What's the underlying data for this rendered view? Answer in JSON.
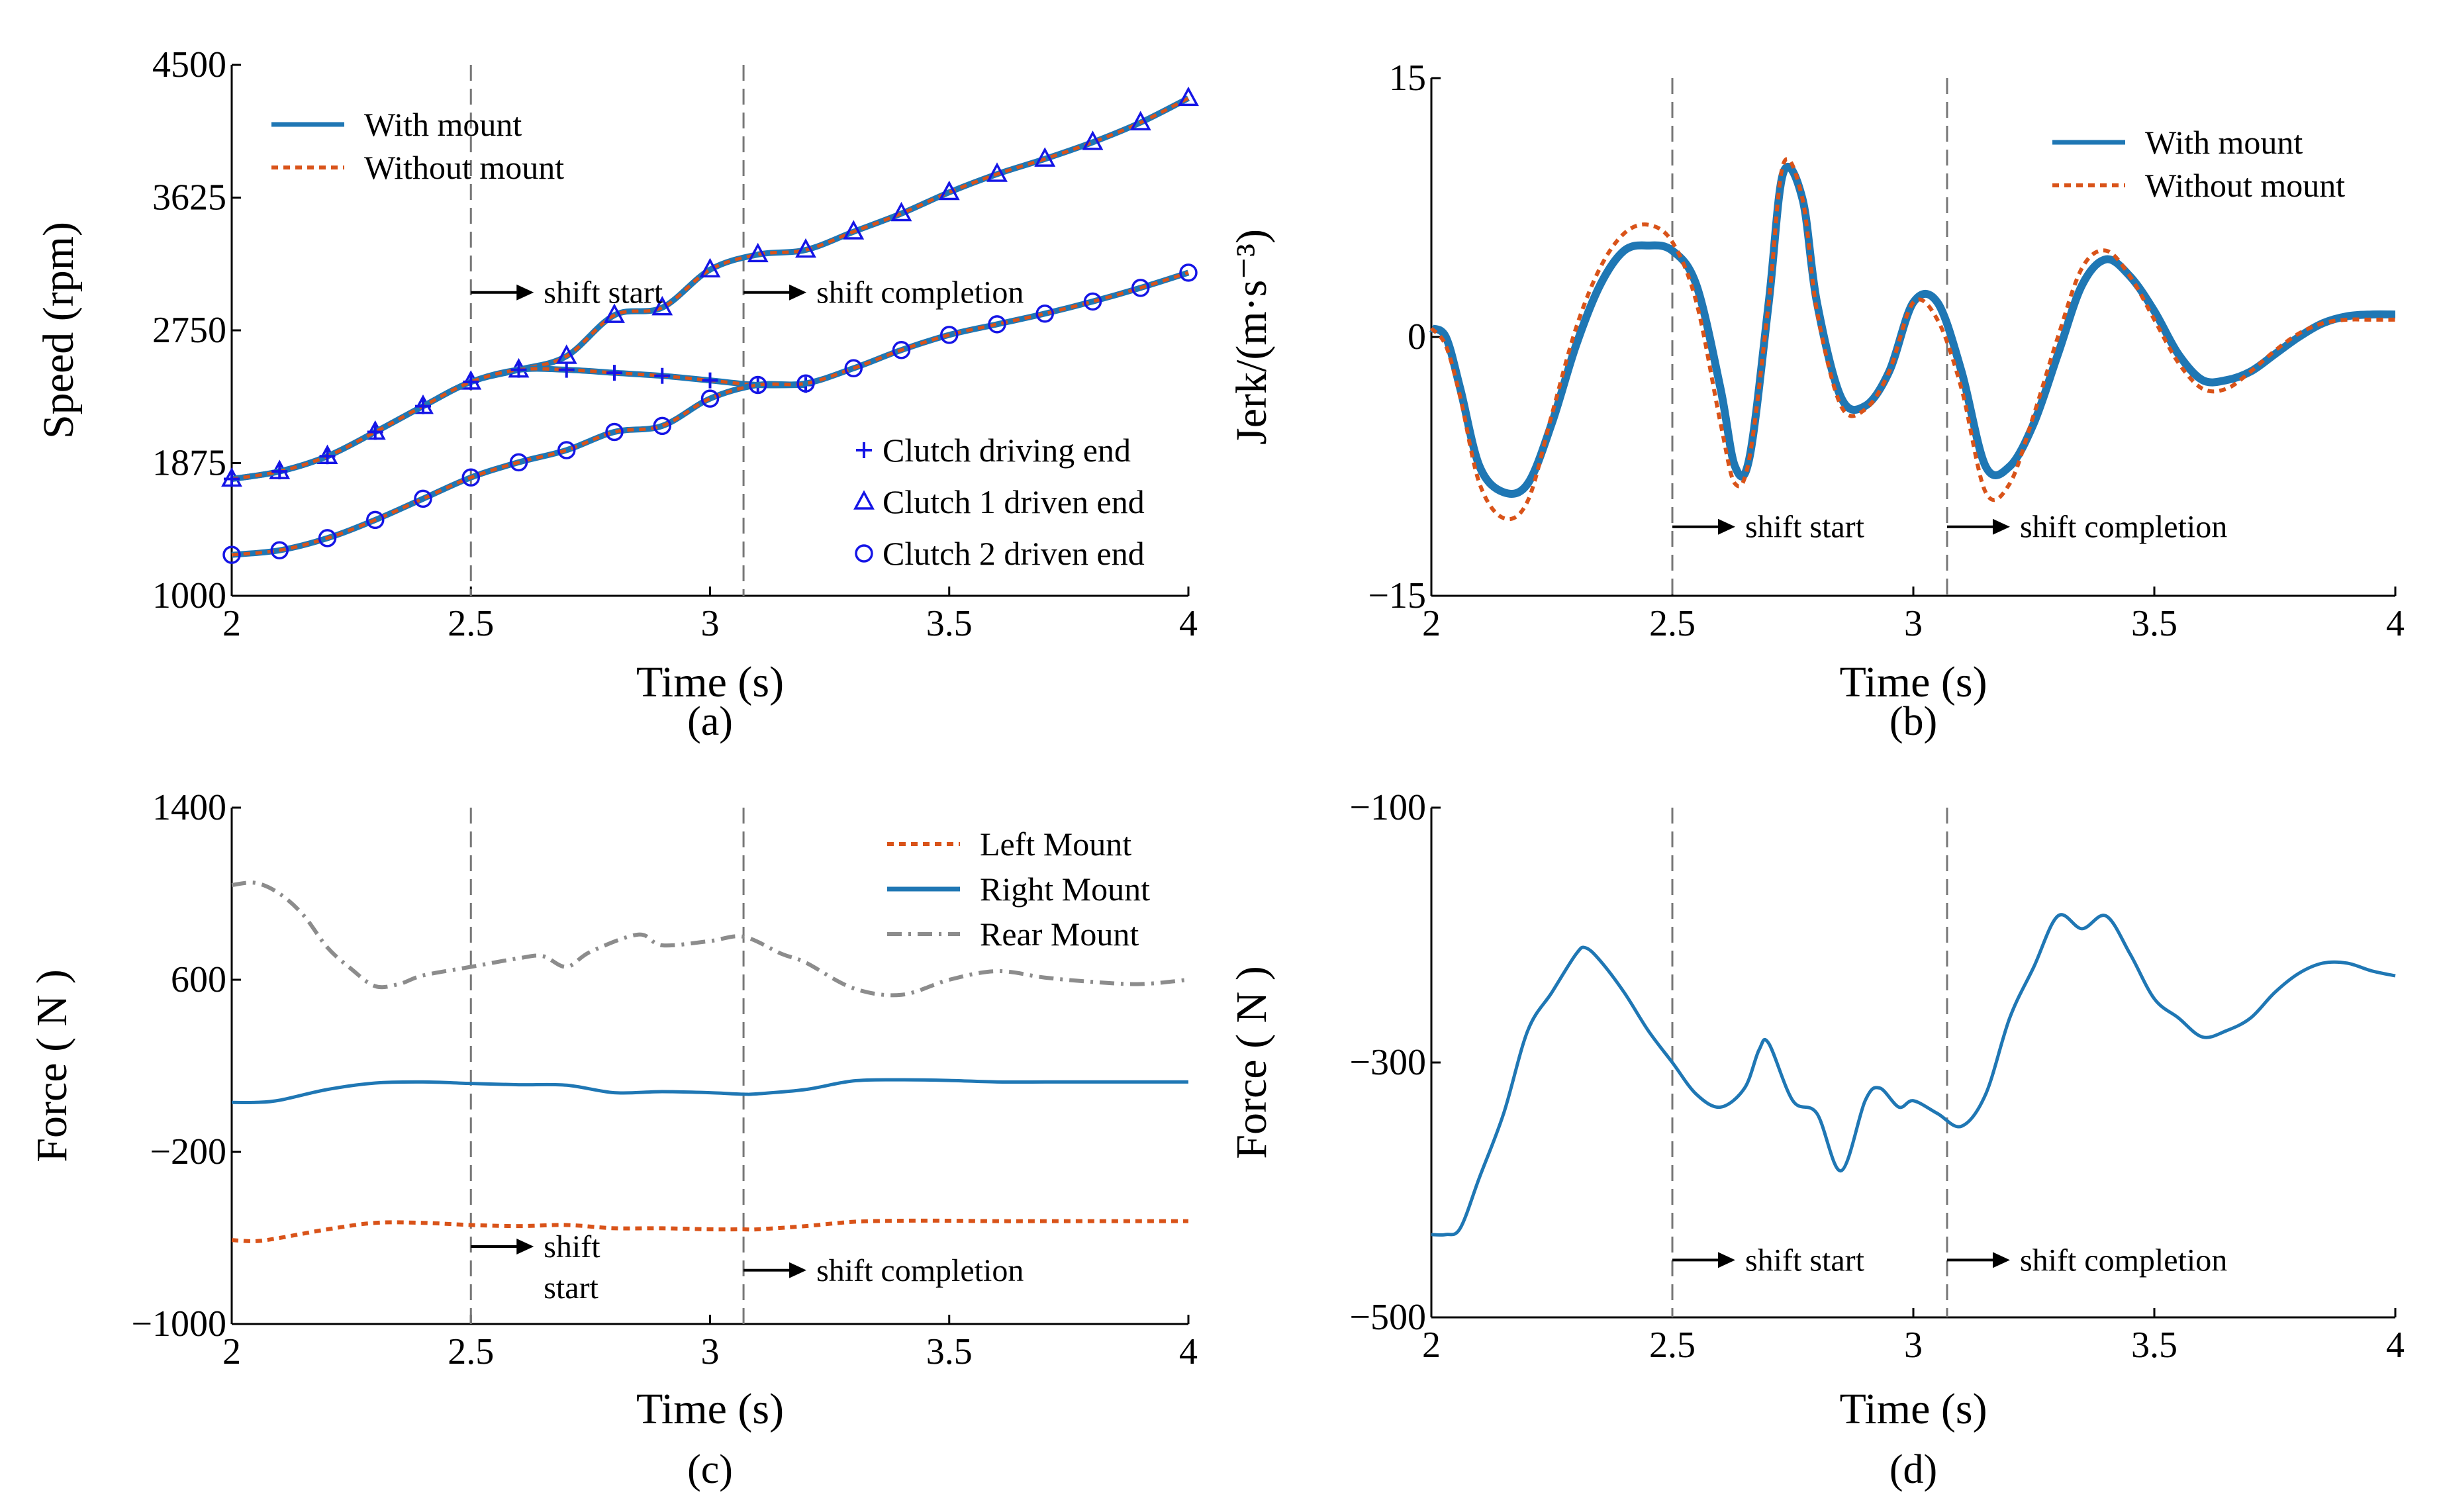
{
  "chart_data": [
    {
      "id": "a",
      "type": "line",
      "panel_label": "(a)",
      "xlabel": "Time (s)",
      "ylabel": "Speed (rpm)",
      "xlim": [
        2,
        4
      ],
      "ylim": [
        1000,
        4500
      ],
      "xticks": [
        2,
        2.5,
        3,
        3.5,
        4
      ],
      "xtick_labels": [
        "2",
        "2.5",
        "3",
        "3.5",
        "4"
      ],
      "yticks": [
        1000,
        1875,
        2750,
        3625,
        4500
      ],
      "ytick_labels": [
        "1000",
        "1875",
        "2750",
        "3625",
        "4500"
      ],
      "vlines": [
        2.5,
        3.07
      ],
      "annotations": [
        {
          "text": "shift start",
          "x": 2.5,
          "y": 3000
        },
        {
          "text": "shift completion",
          "x": 3.07,
          "y": 3000
        }
      ],
      "legend_lines": [
        {
          "name": "With mount",
          "color": "#1f77b4",
          "style": "solid"
        },
        {
          "name": "Without mount",
          "color": "#d95319",
          "style": "dotted"
        }
      ],
      "legend_markers": [
        {
          "name": "Clutch driving end",
          "marker": "plus",
          "color": "#1515e6"
        },
        {
          "name": "Clutch 1 driven end",
          "marker": "triangle",
          "color": "#1515e6"
        },
        {
          "name": "Clutch 2 driven end",
          "marker": "circle",
          "color": "#1515e6"
        }
      ],
      "series": [
        {
          "name": "Clutch 1 driven end",
          "marker": "triangle",
          "x": [
            2.0,
            2.1,
            2.2,
            2.3,
            2.4,
            2.5,
            2.6,
            2.7,
            2.8,
            2.9,
            3.0,
            3.1,
            3.2,
            3.3,
            3.4,
            3.5,
            3.6,
            3.7,
            3.8,
            3.9,
            4.0
          ],
          "values": [
            1770,
            1820,
            1920,
            2080,
            2250,
            2410,
            2490,
            2580,
            2850,
            2900,
            3150,
            3250,
            3280,
            3400,
            3520,
            3660,
            3780,
            3880,
            3990,
            4120,
            4280
          ]
        },
        {
          "name": "Clutch driving end",
          "marker": "plus",
          "x": [
            2.0,
            2.1,
            2.2,
            2.3,
            2.4,
            2.5,
            2.6,
            2.7,
            2.8,
            2.9,
            3.0,
            3.1,
            3.2
          ],
          "values": [
            1770,
            1820,
            1920,
            2080,
            2250,
            2410,
            2490,
            2490,
            2470,
            2450,
            2420,
            2390,
            2390
          ]
        },
        {
          "name": "Clutch 2 driven end",
          "marker": "circle",
          "x": [
            2.0,
            2.1,
            2.2,
            2.3,
            2.4,
            2.5,
            2.6,
            2.7,
            2.8,
            2.9,
            3.0,
            3.1,
            3.2,
            3.3,
            3.4,
            3.5,
            3.6,
            3.7,
            3.8,
            3.9,
            4.0
          ],
          "values": [
            1270,
            1300,
            1380,
            1500,
            1640,
            1780,
            1880,
            1960,
            2080,
            2120,
            2300,
            2390,
            2400,
            2500,
            2620,
            2720,
            2790,
            2860,
            2940,
            3030,
            3130
          ]
        }
      ]
    },
    {
      "id": "b",
      "type": "line",
      "panel_label": "(b)",
      "xlabel": "Time (s)",
      "ylabel": "Jerk/(m·s⁻³)",
      "xlim": [
        2,
        4
      ],
      "ylim": [
        -15,
        15
      ],
      "xticks": [
        2,
        2.5,
        3,
        3.5,
        4
      ],
      "xtick_labels": [
        "2",
        "2.5",
        "3",
        "3.5",
        "4"
      ],
      "yticks": [
        -15,
        0,
        15
      ],
      "ytick_labels": [
        "−15",
        "0",
        "15"
      ],
      "vlines": [
        2.5,
        3.07
      ],
      "annotations": [
        {
          "text": "shift start",
          "x": 2.5,
          "y": -11
        },
        {
          "text": "shift completion",
          "x": 3.07,
          "y": -11
        }
      ],
      "legend_lines": [
        {
          "name": "With mount",
          "color": "#1f77b4",
          "style": "solid"
        },
        {
          "name": "Without mount",
          "color": "#d95319",
          "style": "dotted"
        }
      ],
      "series": [
        {
          "name": "With mount",
          "x": [
            2.0,
            2.03,
            2.06,
            2.1,
            2.15,
            2.2,
            2.25,
            2.3,
            2.35,
            2.4,
            2.45,
            2.5,
            2.55,
            2.6,
            2.63,
            2.66,
            2.7,
            2.73,
            2.77,
            2.8,
            2.85,
            2.9,
            2.95,
            3.0,
            3.05,
            3.1,
            3.15,
            3.2,
            3.25,
            3.3,
            3.35,
            3.4,
            3.45,
            3.5,
            3.55,
            3.6,
            3.65,
            3.7,
            3.75,
            3.8,
            3.85,
            3.9,
            3.95,
            4.0
          ],
          "values": [
            0.5,
            0,
            -3,
            -7.5,
            -9,
            -8.5,
            -5,
            -0.5,
            3,
            5,
            5.3,
            5,
            3,
            -3,
            -7.5,
            -7,
            2,
            9.5,
            8,
            2,
            -3.5,
            -4,
            -2,
            2,
            2,
            -2,
            -7.5,
            -7.5,
            -5,
            -1,
            3,
            4.5,
            3.5,
            1.5,
            -1,
            -2.5,
            -2.5,
            -2,
            -1,
            0,
            0.8,
            1.2,
            1.3,
            1.3
          ]
        },
        {
          "name": "Without mount",
          "x": [
            2.0,
            2.03,
            2.06,
            2.1,
            2.15,
            2.2,
            2.25,
            2.3,
            2.35,
            2.4,
            2.45,
            2.5,
            2.55,
            2.6,
            2.63,
            2.66,
            2.7,
            2.73,
            2.77,
            2.8,
            2.85,
            2.9,
            2.95,
            3.0,
            3.05,
            3.1,
            3.15,
            3.2,
            3.25,
            3.3,
            3.35,
            3.4,
            3.45,
            3.5,
            3.55,
            3.6,
            3.65,
            3.7,
            3.75,
            3.8,
            3.85,
            3.9,
            3.95,
            4.0
          ],
          "values": [
            0.5,
            -0.5,
            -3.5,
            -8.5,
            -10.5,
            -9.5,
            -4.5,
            0.5,
            4,
            6,
            6.5,
            5.5,
            2,
            -5,
            -8.5,
            -7,
            2,
            10,
            8,
            1.5,
            -4,
            -4.2,
            -2,
            2,
            1,
            -3,
            -9,
            -8.5,
            -4.5,
            0,
            4,
            5,
            3.5,
            1,
            -1.5,
            -3,
            -3,
            -2,
            -0.8,
            0.2,
            0.8,
            1,
            1,
            1
          ]
        }
      ]
    },
    {
      "id": "c",
      "type": "line",
      "panel_label": "(c)",
      "xlabel": "Time (s)",
      "ylabel": "Force ( N )",
      "xlim": [
        2,
        4
      ],
      "ylim": [
        -1000,
        1400
      ],
      "xticks": [
        2,
        2.5,
        3,
        3.5,
        4
      ],
      "xtick_labels": [
        "2",
        "2.5",
        "3",
        "3.5",
        "4"
      ],
      "yticks": [
        -1000,
        -200,
        600,
        1400
      ],
      "ytick_labels": [
        "−1000",
        "−200",
        "600",
        "1400"
      ],
      "vlines": [
        2.5,
        3.07
      ],
      "annotations": [
        {
          "text": "shift",
          "x": 2.5,
          "y": -640
        },
        {
          "text": "start",
          "x": 2.5,
          "y": -830
        },
        {
          "text": "shift completion",
          "x": 3.07,
          "y": -750
        }
      ],
      "legend_lines": [
        {
          "name": "Left Mount",
          "color": "#d95319",
          "style": "dotted"
        },
        {
          "name": "Right Mount",
          "color": "#1f77b4",
          "style": "solid"
        },
        {
          "name": "Rear Mount",
          "color": "#8c8c8c",
          "style": "dashdot"
        }
      ],
      "series": [
        {
          "name": "Left Mount",
          "x": [
            2.0,
            2.05,
            2.1,
            2.2,
            2.3,
            2.4,
            2.5,
            2.6,
            2.7,
            2.8,
            2.9,
            3.0,
            3.07,
            3.1,
            3.2,
            3.3,
            3.4,
            3.5,
            3.6,
            3.7,
            3.8,
            3.9,
            4.0
          ],
          "values": [
            -610,
            -615,
            -600,
            -560,
            -530,
            -530,
            -540,
            -545,
            -540,
            -555,
            -555,
            -560,
            -560,
            -560,
            -545,
            -525,
            -520,
            -520,
            -522,
            -522,
            -522,
            -522,
            -522
          ]
        },
        {
          "name": "Right Mount",
          "x": [
            2.0,
            2.05,
            2.1,
            2.2,
            2.3,
            2.4,
            2.5,
            2.6,
            2.7,
            2.8,
            2.9,
            3.0,
            3.07,
            3.1,
            3.2,
            3.3,
            3.4,
            3.5,
            3.6,
            3.7,
            3.8,
            3.9,
            4.0
          ],
          "values": [
            30,
            30,
            40,
            90,
            120,
            125,
            118,
            112,
            110,
            75,
            80,
            75,
            68,
            70,
            90,
            130,
            135,
            132,
            125,
            125,
            125,
            125,
            125
          ]
        },
        {
          "name": "Rear Mount",
          "x": [
            2.0,
            2.05,
            2.1,
            2.15,
            2.2,
            2.25,
            2.3,
            2.35,
            2.4,
            2.5,
            2.6,
            2.65,
            2.7,
            2.75,
            2.85,
            2.9,
            3.0,
            3.07,
            3.15,
            3.2,
            3.3,
            3.4,
            3.5,
            3.6,
            3.7,
            3.8,
            3.9,
            4.0
          ],
          "values": [
            1040,
            1050,
            1000,
            900,
            750,
            650,
            570,
            580,
            620,
            660,
            700,
            710,
            660,
            730,
            810,
            760,
            780,
            800,
            720,
            680,
            560,
            530,
            600,
            640,
            610,
            590,
            580,
            600
          ]
        }
      ]
    },
    {
      "id": "d",
      "type": "line",
      "panel_label": "(d)",
      "xlabel": "Time (s)",
      "ylabel": "Force ( N )",
      "xlim": [
        2,
        4
      ],
      "ylim": [
        -500,
        -100
      ],
      "xticks": [
        2,
        2.5,
        3,
        3.5,
        4
      ],
      "xtick_labels": [
        "2",
        "2.5",
        "3",
        "3.5",
        "4"
      ],
      "yticks": [
        -500,
        -300,
        -100
      ],
      "ytick_labels": [
        "−500",
        "−300",
        "−100"
      ],
      "vlines": [
        2.5,
        3.07
      ],
      "annotations": [
        {
          "text": "shift start",
          "x": 2.5,
          "y": -455
        },
        {
          "text": "shift completion",
          "x": 3.07,
          "y": -455
        }
      ],
      "series": [
        {
          "name": "Right Mount",
          "x": [
            2.0,
            2.03,
            2.06,
            2.1,
            2.15,
            2.2,
            2.25,
            2.3,
            2.32,
            2.35,
            2.4,
            2.45,
            2.5,
            2.55,
            2.6,
            2.65,
            2.68,
            2.7,
            2.75,
            2.8,
            2.85,
            2.9,
            2.93,
            2.97,
            3.0,
            3.05,
            3.1,
            3.15,
            3.2,
            3.25,
            3.3,
            3.35,
            3.4,
            3.45,
            3.5,
            3.55,
            3.6,
            3.65,
            3.7,
            3.75,
            3.8,
            3.85,
            3.9,
            3.95,
            4.0
          ],
          "values": [
            -435,
            -435,
            -430,
            -390,
            -340,
            -275,
            -245,
            -215,
            -210,
            -220,
            -245,
            -275,
            -300,
            -325,
            -335,
            -320,
            -290,
            -285,
            -330,
            -340,
            -385,
            -330,
            -320,
            -335,
            -330,
            -340,
            -350,
            -325,
            -265,
            -225,
            -185,
            -195,
            -185,
            -215,
            -250,
            -265,
            -280,
            -275,
            -265,
            -245,
            -230,
            -222,
            -222,
            -228,
            -232
          ]
        }
      ]
    }
  ]
}
